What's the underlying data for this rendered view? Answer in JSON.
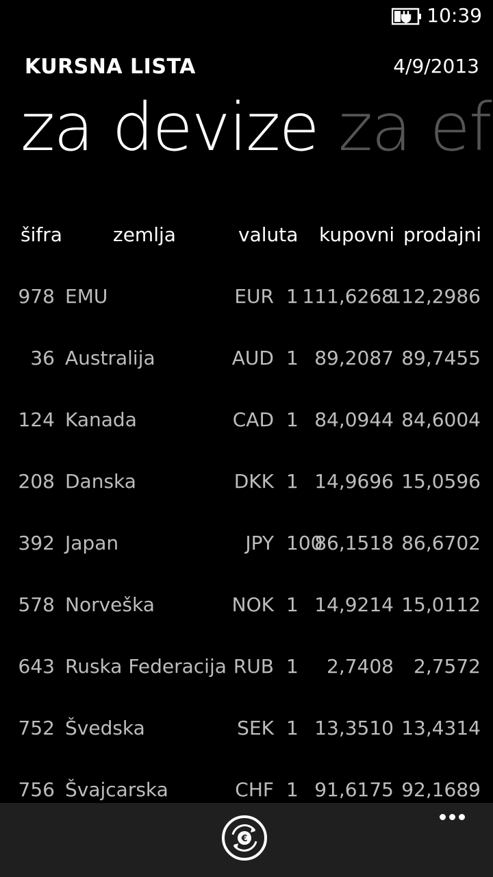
{
  "status_bar": {
    "time": "10:39",
    "battery_icon": "battery-charging-icon"
  },
  "header": {
    "app_title": "KURSNA LISTA",
    "date": "4/9/2013"
  },
  "pivot": {
    "tabs": [
      {
        "label": "za devize"
      },
      {
        "label": "za ef"
      }
    ]
  },
  "table": {
    "headers": {
      "code": "šifra",
      "country": "zemlja",
      "currency": "valuta",
      "buy": "kupovni",
      "sell": "prodajni"
    },
    "rows": [
      {
        "code": "978",
        "country": "EMU",
        "currency": "EUR",
        "unit": "1",
        "buy": "111,6268",
        "sell": "112,2986"
      },
      {
        "code": "36",
        "country": "Australija",
        "currency": "AUD",
        "unit": "1",
        "buy": "89,2087",
        "sell": "89,7455"
      },
      {
        "code": "124",
        "country": "Kanada",
        "currency": "CAD",
        "unit": "1",
        "buy": "84,0944",
        "sell": "84,6004"
      },
      {
        "code": "208",
        "country": "Danska",
        "currency": "DKK",
        "unit": "1",
        "buy": "14,9696",
        "sell": "15,0596"
      },
      {
        "code": "392",
        "country": "Japan",
        "currency": "JPY",
        "unit": "100",
        "buy": "86,1518",
        "sell": "86,6702"
      },
      {
        "code": "578",
        "country": "Norveška",
        "currency": "NOK",
        "unit": "1",
        "buy": "14,9214",
        "sell": "15,0112"
      },
      {
        "code": "643",
        "country": "Ruska Federacija",
        "currency": "RUB",
        "unit": "1",
        "buy": "2,7408",
        "sell": "2,7572"
      },
      {
        "code": "752",
        "country": "Švedska",
        "currency": "SEK",
        "unit": "1",
        "buy": "13,3510",
        "sell": "13,4314"
      },
      {
        "code": "756",
        "country": "Švajcarska",
        "currency": "CHF",
        "unit": "1",
        "buy": "91,6175",
        "sell": "92,1689"
      }
    ]
  },
  "app_bar": {
    "convert_icon": "euro-exchange-icon",
    "more_icon": "ellipsis-icon"
  },
  "colors": {
    "background": "#000000",
    "text": "#ffffff",
    "muted": "#bdbdbd",
    "inactive_tab": "#555555",
    "app_bar": "#1f1f1f"
  }
}
